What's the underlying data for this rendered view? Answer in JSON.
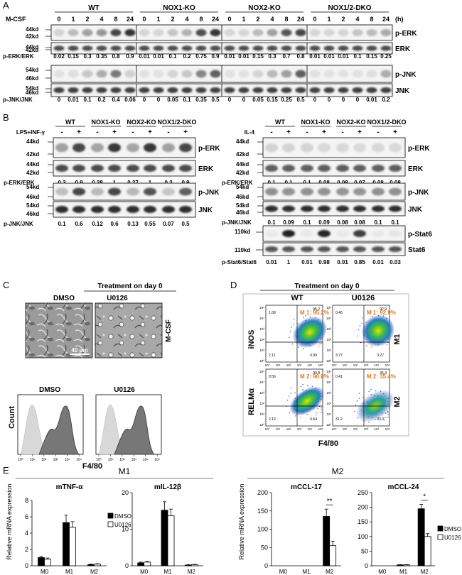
{
  "panelA": {
    "letter": "A",
    "mcsf_label": "M-CSF",
    "hours_label": "(h)",
    "groups": [
      "WT",
      "NOX1-KO",
      "NOX2-KO",
      "NOX1/2-DKO"
    ],
    "timepoints": [
      "0",
      "1",
      "2",
      "4",
      "8",
      "24"
    ],
    "kd_erk": [
      "44kd",
      "42kd"
    ],
    "kd_erk_total": [
      "44kd",
      "42kd"
    ],
    "kd_jnk": [
      "54kd",
      "46kd"
    ],
    "kd_jnk_total": [
      "54kd",
      "46kd"
    ],
    "label_perk": "p-ERK",
    "label_erk": "ERK",
    "label_pjnk": "p-JNK",
    "label_jnk": "JNK",
    "ratio_erk_label": "p-ERK/ERK",
    "ratio_jnk_label": "p-JNK/JNK",
    "ratio_erk": [
      [
        "0.02",
        "0.15",
        "0.3",
        "0.35",
        "0.8",
        "0.9"
      ],
      [
        "0.01",
        "0.01",
        "0.1",
        "0.2",
        "0.75",
        "0.9"
      ],
      [
        "0.01",
        "0.01",
        "0.15",
        "0.3",
        "0.7",
        "0.8"
      ],
      [
        "0.01",
        "0.01",
        "0.01",
        "0.1",
        "0.15",
        "0.25"
      ]
    ],
    "ratio_jnk": [
      [
        "0",
        "0.01",
        "0.1",
        "0.2",
        "0.4",
        "0.06"
      ],
      [
        "0",
        "0",
        "0.05",
        "0.1",
        "0.35",
        "0.5"
      ],
      [
        "0",
        "0",
        "0.05",
        "0.15",
        "0.25",
        "0.5"
      ],
      [
        "0",
        "0",
        "0",
        "0",
        "0.01",
        "0.2"
      ]
    ]
  },
  "panelB": {
    "letter": "B",
    "stim_left": "LPS+INF-γ",
    "stim_right": "IL-4",
    "groups": [
      "WT",
      "NOX1-KO",
      "NOX2-KO",
      "NOX1/2-DKO"
    ],
    "signs": [
      "-",
      "+",
      "-",
      "+",
      "-",
      "+",
      "-",
      "+"
    ],
    "kd_erk": [
      "44kd",
      "42kd"
    ],
    "kd_jnk": [
      "54kd",
      "46kd"
    ],
    "kd_stat": [
      "110kd",
      "110kd"
    ],
    "label_perk": "p-ERK",
    "label_erk": "ERK",
    "label_pjnk": "p-JNK",
    "label_jnk": "JNK",
    "label_pstat": "p-Stat6",
    "label_stat": "Stat6",
    "ratio_erk_label": "p-ERK/ERK",
    "ratio_jnk_label": "p-JNK/JNK",
    "ratio_stat_label": "p-Stat6/Stat6",
    "left_erk": [
      "0.3",
      "0.9",
      "0.28",
      "1",
      "0.27",
      "1",
      "0.3",
      "0.9"
    ],
    "left_jnk": [
      "0.1",
      "0.6",
      "0.12",
      "0.6",
      "0.13",
      "0.55",
      "0.07",
      "0.5"
    ],
    "right_erk": [
      "0.1",
      "0.1",
      "0.1",
      "0.08",
      "0.08",
      "0.07",
      "0.08",
      "0.08"
    ],
    "right_jnk": [
      "0.1",
      "0.09",
      "0.1",
      "0.09",
      "0.08",
      "0.08",
      "0.1",
      "0.1"
    ],
    "right_stat": [
      "0.01",
      "1",
      "0.01",
      "0.98",
      "0.01",
      "0.85",
      "0.01",
      "0.03"
    ]
  },
  "panelC": {
    "letter": "C",
    "title": "Treatment on day 0",
    "col1": "DMSO",
    "col2": "U0126",
    "side_label": "M-CSF",
    "scale": "40 μm",
    "ylabel": "Count",
    "xlabel": "F4/80",
    "ticks": [
      "10⁰",
      "10¹",
      "10²",
      "10³",
      "10⁴",
      "10⁵"
    ]
  },
  "panelD": {
    "letter": "D",
    "title": "Treatment on day 0",
    "col1": "WT",
    "col2": "U0126",
    "row1": "M1",
    "row2": "M2",
    "ylabel1": "iNOS",
    "ylabel2": "RELMα",
    "xlabel": "F4/80",
    "plots": [
      {
        "gate": "M 1: 95.2%",
        "q": [
          "1.68",
          "95.2",
          "2.11",
          "0.99"
        ]
      },
      {
        "gate": "M 1: 92.9%",
        "q": [
          "0.46",
          "92.9",
          "3.77",
          "3.27"
        ]
      },
      {
        "gate": "M 2: 90.8%",
        "q": [
          "0.56",
          "90.8",
          "2.12",
          "6.54"
        ]
      },
      {
        "gate": "M 2: 35.4%",
        "q": [
          "0.41",
          "35.4",
          "31.2",
          "33.0"
        ]
      }
    ],
    "ticks": [
      "10⁰",
      "10¹",
      "10²",
      "10³",
      "10⁴",
      "10⁵"
    ]
  },
  "panelE": {
    "letter": "E",
    "group_left": "M1",
    "group_right": "M2",
    "ylabel": "Relative mRNA expression",
    "legend": [
      "DMSO",
      "U0126"
    ],
    "categories": [
      "M0",
      "M1",
      "M2"
    ],
    "sig1": "**",
    "sig2": "*"
  },
  "chart_data": [
    {
      "type": "bar",
      "title": "mTNF-α",
      "categories": [
        "M0",
        "M1",
        "M2"
      ],
      "series": [
        {
          "name": "DMSO",
          "values": [
            1.0,
            5.3,
            0.15
          ],
          "errors": [
            0.15,
            0.9,
            0.05
          ]
        },
        {
          "name": "U0126",
          "values": [
            0.8,
            4.7,
            0.2
          ],
          "errors": [
            0.15,
            0.7,
            0.05
          ]
        }
      ],
      "ylabel": "Relative mRNA expression",
      "ylim": [
        0,
        8
      ],
      "yticks": [
        0,
        2,
        4,
        6,
        8
      ]
    },
    {
      "type": "bar",
      "title": "mIL-12β",
      "categories": [
        "M0",
        "M1",
        "M2"
      ],
      "series": [
        {
          "name": "DMSO",
          "values": [
            0.8,
            15.2,
            0.2
          ],
          "errors": [
            0.2,
            2.3,
            0.1
          ]
        },
        {
          "name": "U0126",
          "values": [
            1.0,
            13.7,
            0.3
          ],
          "errors": [
            0.2,
            1.8,
            0.1
          ]
        }
      ],
      "ylabel": "",
      "ylim": [
        0,
        20
      ],
      "yticks": [
        0,
        10,
        20
      ]
    },
    {
      "type": "bar",
      "title": "mCCL-17",
      "categories": [
        "M0",
        "M1",
        "M2"
      ],
      "series": [
        {
          "name": "DMSO",
          "values": [
            0,
            0,
            135
          ],
          "errors": [
            0,
            0,
            20
          ]
        },
        {
          "name": "U0126",
          "values": [
            0,
            0,
            55
          ],
          "errors": [
            0,
            0,
            12
          ]
        }
      ],
      "ylabel": "Relative mRNA expression",
      "ylim": [
        0,
        200
      ],
      "yticks": [
        0,
        50,
        100,
        150,
        200
      ]
    },
    {
      "type": "bar",
      "title": "mCCL-24",
      "categories": [
        "M0",
        "M1",
        "M2"
      ],
      "series": [
        {
          "name": "DMSO",
          "values": [
            0,
            3,
            195
          ],
          "errors": [
            0,
            1,
            15
          ]
        },
        {
          "name": "U0126",
          "values": [
            0,
            3,
            100
          ],
          "errors": [
            0,
            1,
            10
          ]
        }
      ],
      "ylabel": "",
      "ylim": [
        0,
        250
      ],
      "yticks": [
        0,
        50,
        100,
        150,
        200,
        250
      ]
    }
  ]
}
